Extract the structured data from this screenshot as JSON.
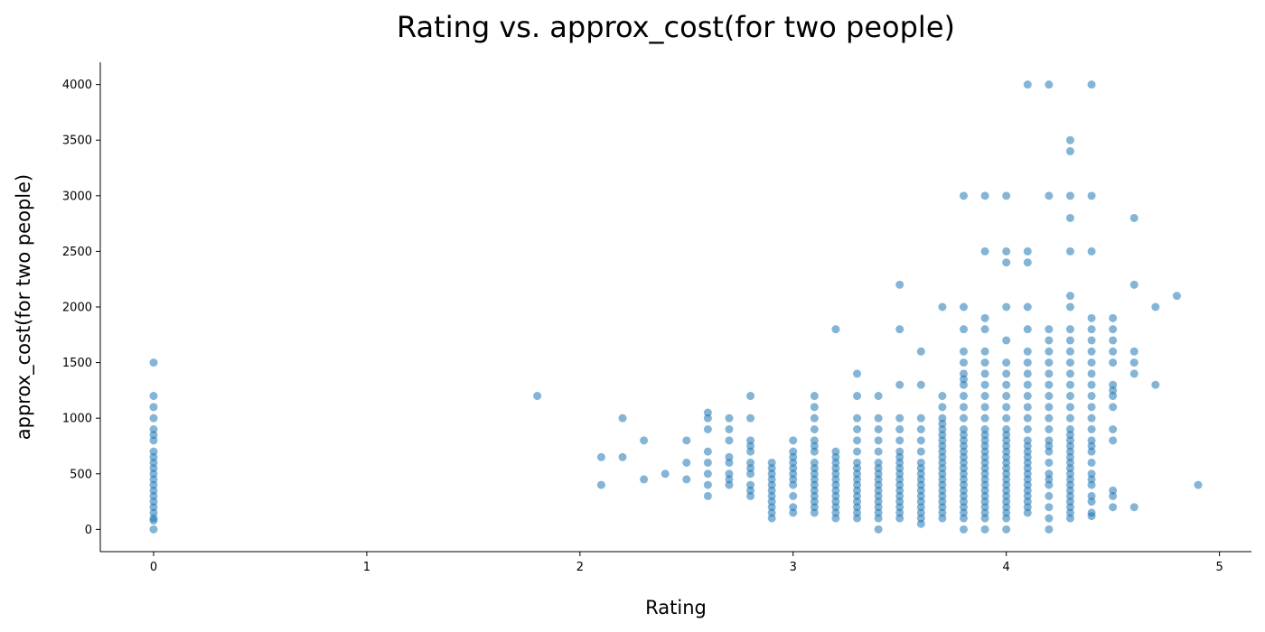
{
  "chart_data": {
    "type": "scatter",
    "title": "Rating vs. approx_cost(for two people)",
    "xlabel": "Rating",
    "ylabel": "approx_cost(for two people)",
    "xlim": [
      -0.25,
      5.15
    ],
    "ylim": [
      -200,
      4200
    ],
    "xticks": [
      0,
      1,
      2,
      3,
      4,
      5
    ],
    "yticks": [
      0,
      500,
      1000,
      1500,
      2000,
      2500,
      3000,
      3500,
      4000
    ],
    "grid": false,
    "marker_color": "#1f77b4",
    "marker_alpha": 0.55,
    "points": [
      [
        0,
        0
      ],
      [
        0,
        80
      ],
      [
        0,
        100
      ],
      [
        0,
        150
      ],
      [
        0,
        200
      ],
      [
        0,
        250
      ],
      [
        0,
        300
      ],
      [
        0,
        350
      ],
      [
        0,
        400
      ],
      [
        0,
        450
      ],
      [
        0,
        500
      ],
      [
        0,
        550
      ],
      [
        0,
        600
      ],
      [
        0,
        650
      ],
      [
        0,
        700
      ],
      [
        0,
        800
      ],
      [
        0,
        850
      ],
      [
        0,
        900
      ],
      [
        0,
        1000
      ],
      [
        0,
        1100
      ],
      [
        0,
        1200
      ],
      [
        0,
        1500
      ],
      [
        1.8,
        1200
      ],
      [
        2.1,
        400
      ],
      [
        2.1,
        650
      ],
      [
        2.2,
        650
      ],
      [
        2.2,
        1000
      ],
      [
        2.3,
        450
      ],
      [
        2.3,
        800
      ],
      [
        2.4,
        500
      ],
      [
        2.5,
        450
      ],
      [
        2.5,
        600
      ],
      [
        2.5,
        800
      ],
      [
        2.6,
        300
      ],
      [
        2.6,
        400
      ],
      [
        2.6,
        500
      ],
      [
        2.6,
        600
      ],
      [
        2.6,
        700
      ],
      [
        2.6,
        900
      ],
      [
        2.6,
        1000
      ],
      [
        2.6,
        1050
      ],
      [
        2.7,
        400
      ],
      [
        2.7,
        450
      ],
      [
        2.7,
        500
      ],
      [
        2.7,
        600
      ],
      [
        2.7,
        650
      ],
      [
        2.7,
        800
      ],
      [
        2.7,
        900
      ],
      [
        2.7,
        1000
      ],
      [
        2.8,
        300
      ],
      [
        2.8,
        350
      ],
      [
        2.8,
        400
      ],
      [
        2.8,
        500
      ],
      [
        2.8,
        550
      ],
      [
        2.8,
        600
      ],
      [
        2.8,
        700
      ],
      [
        2.8,
        750
      ],
      [
        2.8,
        800
      ],
      [
        2.8,
        1000
      ],
      [
        2.8,
        1200
      ],
      [
        2.9,
        100
      ],
      [
        2.9,
        150
      ],
      [
        2.9,
        200
      ],
      [
        2.9,
        250
      ],
      [
        2.9,
        300
      ],
      [
        2.9,
        350
      ],
      [
        2.9,
        400
      ],
      [
        2.9,
        450
      ],
      [
        2.9,
        500
      ],
      [
        2.9,
        550
      ],
      [
        2.9,
        600
      ],
      [
        3.0,
        150
      ],
      [
        3.0,
        200
      ],
      [
        3.0,
        300
      ],
      [
        3.0,
        400
      ],
      [
        3.0,
        450
      ],
      [
        3.0,
        500
      ],
      [
        3.0,
        550
      ],
      [
        3.0,
        600
      ],
      [
        3.0,
        650
      ],
      [
        3.0,
        700
      ],
      [
        3.0,
        800
      ],
      [
        3.1,
        150
      ],
      [
        3.1,
        200
      ],
      [
        3.1,
        250
      ],
      [
        3.1,
        300
      ],
      [
        3.1,
        350
      ],
      [
        3.1,
        400
      ],
      [
        3.1,
        450
      ],
      [
        3.1,
        500
      ],
      [
        3.1,
        550
      ],
      [
        3.1,
        600
      ],
      [
        3.1,
        700
      ],
      [
        3.1,
        750
      ],
      [
        3.1,
        800
      ],
      [
        3.1,
        900
      ],
      [
        3.1,
        1000
      ],
      [
        3.1,
        1100
      ],
      [
        3.1,
        1200
      ],
      [
        3.2,
        100
      ],
      [
        3.2,
        150
      ],
      [
        3.2,
        200
      ],
      [
        3.2,
        250
      ],
      [
        3.2,
        300
      ],
      [
        3.2,
        350
      ],
      [
        3.2,
        400
      ],
      [
        3.2,
        450
      ],
      [
        3.2,
        500
      ],
      [
        3.2,
        550
      ],
      [
        3.2,
        600
      ],
      [
        3.2,
        650
      ],
      [
        3.2,
        700
      ],
      [
        3.2,
        1800
      ],
      [
        3.3,
        100
      ],
      [
        3.3,
        150
      ],
      [
        3.3,
        200
      ],
      [
        3.3,
        250
      ],
      [
        3.3,
        300
      ],
      [
        3.3,
        350
      ],
      [
        3.3,
        400
      ],
      [
        3.3,
        450
      ],
      [
        3.3,
        500
      ],
      [
        3.3,
        550
      ],
      [
        3.3,
        600
      ],
      [
        3.3,
        700
      ],
      [
        3.3,
        800
      ],
      [
        3.3,
        900
      ],
      [
        3.3,
        1000
      ],
      [
        3.3,
        1200
      ],
      [
        3.3,
        1400
      ],
      [
        3.4,
        0
      ],
      [
        3.4,
        100
      ],
      [
        3.4,
        150
      ],
      [
        3.4,
        200
      ],
      [
        3.4,
        250
      ],
      [
        3.4,
        300
      ],
      [
        3.4,
        350
      ],
      [
        3.4,
        400
      ],
      [
        3.4,
        450
      ],
      [
        3.4,
        500
      ],
      [
        3.4,
        550
      ],
      [
        3.4,
        600
      ],
      [
        3.4,
        700
      ],
      [
        3.4,
        800
      ],
      [
        3.4,
        900
      ],
      [
        3.4,
        1000
      ],
      [
        3.4,
        1200
      ],
      [
        3.5,
        100
      ],
      [
        3.5,
        150
      ],
      [
        3.5,
        200
      ],
      [
        3.5,
        250
      ],
      [
        3.5,
        300
      ],
      [
        3.5,
        350
      ],
      [
        3.5,
        400
      ],
      [
        3.5,
        450
      ],
      [
        3.5,
        500
      ],
      [
        3.5,
        550
      ],
      [
        3.5,
        600
      ],
      [
        3.5,
        650
      ],
      [
        3.5,
        700
      ],
      [
        3.5,
        800
      ],
      [
        3.5,
        900
      ],
      [
        3.5,
        1000
      ],
      [
        3.5,
        1300
      ],
      [
        3.5,
        1800
      ],
      [
        3.5,
        2200
      ],
      [
        3.6,
        50
      ],
      [
        3.6,
        100
      ],
      [
        3.6,
        150
      ],
      [
        3.6,
        200
      ],
      [
        3.6,
        250
      ],
      [
        3.6,
        300
      ],
      [
        3.6,
        350
      ],
      [
        3.6,
        400
      ],
      [
        3.6,
        450
      ],
      [
        3.6,
        500
      ],
      [
        3.6,
        550
      ],
      [
        3.6,
        600
      ],
      [
        3.6,
        700
      ],
      [
        3.6,
        800
      ],
      [
        3.6,
        900
      ],
      [
        3.6,
        1000
      ],
      [
        3.6,
        1300
      ],
      [
        3.6,
        1600
      ],
      [
        3.7,
        100
      ],
      [
        3.7,
        150
      ],
      [
        3.7,
        200
      ],
      [
        3.7,
        250
      ],
      [
        3.7,
        300
      ],
      [
        3.7,
        350
      ],
      [
        3.7,
        400
      ],
      [
        3.7,
        450
      ],
      [
        3.7,
        500
      ],
      [
        3.7,
        550
      ],
      [
        3.7,
        600
      ],
      [
        3.7,
        650
      ],
      [
        3.7,
        700
      ],
      [
        3.7,
        750
      ],
      [
        3.7,
        800
      ],
      [
        3.7,
        850
      ],
      [
        3.7,
        900
      ],
      [
        3.7,
        950
      ],
      [
        3.7,
        1000
      ],
      [
        3.7,
        1100
      ],
      [
        3.7,
        1200
      ],
      [
        3.7,
        2000
      ],
      [
        3.8,
        0
      ],
      [
        3.8,
        100
      ],
      [
        3.8,
        150
      ],
      [
        3.8,
        200
      ],
      [
        3.8,
        250
      ],
      [
        3.8,
        300
      ],
      [
        3.8,
        350
      ],
      [
        3.8,
        400
      ],
      [
        3.8,
        450
      ],
      [
        3.8,
        500
      ],
      [
        3.8,
        550
      ],
      [
        3.8,
        600
      ],
      [
        3.8,
        650
      ],
      [
        3.8,
        700
      ],
      [
        3.8,
        750
      ],
      [
        3.8,
        800
      ],
      [
        3.8,
        850
      ],
      [
        3.8,
        900
      ],
      [
        3.8,
        1000
      ],
      [
        3.8,
        1100
      ],
      [
        3.8,
        1200
      ],
      [
        3.8,
        1300
      ],
      [
        3.8,
        1350
      ],
      [
        3.8,
        1400
      ],
      [
        3.8,
        1500
      ],
      [
        3.8,
        1600
      ],
      [
        3.8,
        1800
      ],
      [
        3.8,
        2000
      ],
      [
        3.8,
        3000
      ],
      [
        3.9,
        0
      ],
      [
        3.9,
        100
      ],
      [
        3.9,
        150
      ],
      [
        3.9,
        200
      ],
      [
        3.9,
        250
      ],
      [
        3.9,
        300
      ],
      [
        3.9,
        350
      ],
      [
        3.9,
        400
      ],
      [
        3.9,
        450
      ],
      [
        3.9,
        500
      ],
      [
        3.9,
        550
      ],
      [
        3.9,
        600
      ],
      [
        3.9,
        650
      ],
      [
        3.9,
        700
      ],
      [
        3.9,
        750
      ],
      [
        3.9,
        800
      ],
      [
        3.9,
        850
      ],
      [
        3.9,
        900
      ],
      [
        3.9,
        1000
      ],
      [
        3.9,
        1100
      ],
      [
        3.9,
        1200
      ],
      [
        3.9,
        1300
      ],
      [
        3.9,
        1400
      ],
      [
        3.9,
        1500
      ],
      [
        3.9,
        1600
      ],
      [
        3.9,
        1800
      ],
      [
        3.9,
        1900
      ],
      [
        3.9,
        2500
      ],
      [
        3.9,
        3000
      ],
      [
        4.0,
        0
      ],
      [
        4.0,
        100
      ],
      [
        4.0,
        150
      ],
      [
        4.0,
        200
      ],
      [
        4.0,
        250
      ],
      [
        4.0,
        300
      ],
      [
        4.0,
        350
      ],
      [
        4.0,
        400
      ],
      [
        4.0,
        450
      ],
      [
        4.0,
        500
      ],
      [
        4.0,
        550
      ],
      [
        4.0,
        600
      ],
      [
        4.0,
        650
      ],
      [
        4.0,
        700
      ],
      [
        4.0,
        750
      ],
      [
        4.0,
        800
      ],
      [
        4.0,
        850
      ],
      [
        4.0,
        900
      ],
      [
        4.0,
        1000
      ],
      [
        4.0,
        1100
      ],
      [
        4.0,
        1200
      ],
      [
        4.0,
        1300
      ],
      [
        4.0,
        1400
      ],
      [
        4.0,
        1500
      ],
      [
        4.0,
        1700
      ],
      [
        4.0,
        2000
      ],
      [
        4.0,
        2400
      ],
      [
        4.0,
        2500
      ],
      [
        4.0,
        3000
      ],
      [
        4.1,
        150
      ],
      [
        4.1,
        200
      ],
      [
        4.1,
        250
      ],
      [
        4.1,
        300
      ],
      [
        4.1,
        350
      ],
      [
        4.1,
        400
      ],
      [
        4.1,
        450
      ],
      [
        4.1,
        500
      ],
      [
        4.1,
        550
      ],
      [
        4.1,
        600
      ],
      [
        4.1,
        650
      ],
      [
        4.1,
        700
      ],
      [
        4.1,
        750
      ],
      [
        4.1,
        800
      ],
      [
        4.1,
        900
      ],
      [
        4.1,
        1000
      ],
      [
        4.1,
        1100
      ],
      [
        4.1,
        1200
      ],
      [
        4.1,
        1300
      ],
      [
        4.1,
        1400
      ],
      [
        4.1,
        1500
      ],
      [
        4.1,
        1600
      ],
      [
        4.1,
        1800
      ],
      [
        4.1,
        2000
      ],
      [
        4.1,
        2400
      ],
      [
        4.1,
        2500
      ],
      [
        4.1,
        4000
      ],
      [
        4.2,
        0
      ],
      [
        4.2,
        100
      ],
      [
        4.2,
        200
      ],
      [
        4.2,
        300
      ],
      [
        4.2,
        400
      ],
      [
        4.2,
        450
      ],
      [
        4.2,
        500
      ],
      [
        4.2,
        600
      ],
      [
        4.2,
        700
      ],
      [
        4.2,
        750
      ],
      [
        4.2,
        800
      ],
      [
        4.2,
        900
      ],
      [
        4.2,
        1000
      ],
      [
        4.2,
        1100
      ],
      [
        4.2,
        1200
      ],
      [
        4.2,
        1300
      ],
      [
        4.2,
        1400
      ],
      [
        4.2,
        1500
      ],
      [
        4.2,
        1600
      ],
      [
        4.2,
        1700
      ],
      [
        4.2,
        1800
      ],
      [
        4.2,
        3000
      ],
      [
        4.2,
        4000
      ],
      [
        4.3,
        100
      ],
      [
        4.3,
        150
      ],
      [
        4.3,
        200
      ],
      [
        4.3,
        250
      ],
      [
        4.3,
        300
      ],
      [
        4.3,
        350
      ],
      [
        4.3,
        400
      ],
      [
        4.3,
        450
      ],
      [
        4.3,
        500
      ],
      [
        4.3,
        550
      ],
      [
        4.3,
        600
      ],
      [
        4.3,
        650
      ],
      [
        4.3,
        700
      ],
      [
        4.3,
        750
      ],
      [
        4.3,
        800
      ],
      [
        4.3,
        850
      ],
      [
        4.3,
        900
      ],
      [
        4.3,
        1000
      ],
      [
        4.3,
        1100
      ],
      [
        4.3,
        1200
      ],
      [
        4.3,
        1300
      ],
      [
        4.3,
        1400
      ],
      [
        4.3,
        1500
      ],
      [
        4.3,
        1600
      ],
      [
        4.3,
        1700
      ],
      [
        4.3,
        1800
      ],
      [
        4.3,
        2000
      ],
      [
        4.3,
        2100
      ],
      [
        4.3,
        2500
      ],
      [
        4.3,
        2800
      ],
      [
        4.3,
        3000
      ],
      [
        4.3,
        3400
      ],
      [
        4.3,
        3500
      ],
      [
        4.4,
        120
      ],
      [
        4.4,
        150
      ],
      [
        4.4,
        250
      ],
      [
        4.4,
        300
      ],
      [
        4.4,
        400
      ],
      [
        4.4,
        450
      ],
      [
        4.4,
        500
      ],
      [
        4.4,
        600
      ],
      [
        4.4,
        700
      ],
      [
        4.4,
        750
      ],
      [
        4.4,
        800
      ],
      [
        4.4,
        900
      ],
      [
        4.4,
        1000
      ],
      [
        4.4,
        1100
      ],
      [
        4.4,
        1200
      ],
      [
        4.4,
        1300
      ],
      [
        4.4,
        1400
      ],
      [
        4.4,
        1500
      ],
      [
        4.4,
        1600
      ],
      [
        4.4,
        1700
      ],
      [
        4.4,
        1800
      ],
      [
        4.4,
        1900
      ],
      [
        4.4,
        2500
      ],
      [
        4.4,
        3000
      ],
      [
        4.4,
        4000
      ],
      [
        4.5,
        200
      ],
      [
        4.5,
        300
      ],
      [
        4.5,
        350
      ],
      [
        4.5,
        800
      ],
      [
        4.5,
        900
      ],
      [
        4.5,
        1100
      ],
      [
        4.5,
        1200
      ],
      [
        4.5,
        1250
      ],
      [
        4.5,
        1300
      ],
      [
        4.5,
        1500
      ],
      [
        4.5,
        1600
      ],
      [
        4.5,
        1700
      ],
      [
        4.5,
        1800
      ],
      [
        4.5,
        1900
      ],
      [
        4.6,
        200
      ],
      [
        4.6,
        1400
      ],
      [
        4.6,
        1500
      ],
      [
        4.6,
        1600
      ],
      [
        4.6,
        2200
      ],
      [
        4.6,
        2800
      ],
      [
        4.7,
        1300
      ],
      [
        4.7,
        2000
      ],
      [
        4.8,
        2100
      ],
      [
        4.9,
        400
      ]
    ]
  }
}
